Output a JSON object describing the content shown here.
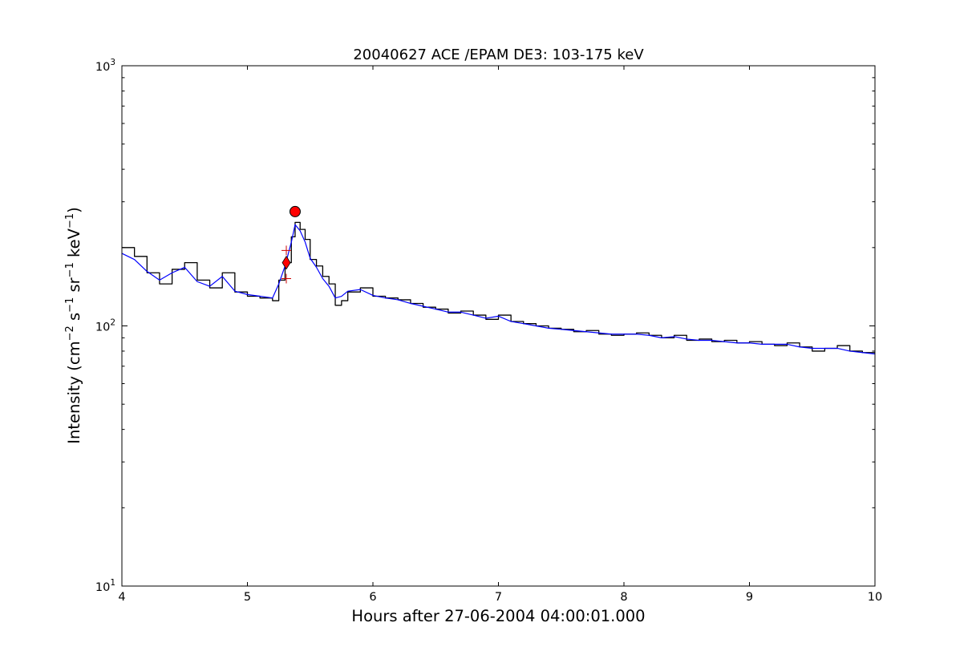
{
  "chart_data": {
    "type": "line",
    "title": "20040627 ACE /EPAM DE3: 103-175 keV",
    "xlabel": "Hours after 27-06-2004 04:00:01.000",
    "ylabel": {
      "prefix": "Intensity (cm",
      "exp1": "−2",
      "part2": " s",
      "exp2": "−1",
      "part3": " sr",
      "exp3": "−1",
      "part4": " keV",
      "exp4": "−1",
      "suffix": ")"
    },
    "xlim": [
      4,
      10
    ],
    "ylim": [
      10,
      1000
    ],
    "yscale": "log",
    "grid": false,
    "x_ticks": [
      {
        "value": 4,
        "label": "4"
      },
      {
        "value": 5,
        "label": "5"
      },
      {
        "value": 6,
        "label": "6"
      },
      {
        "value": 7,
        "label": "7"
      },
      {
        "value": 8,
        "label": "8"
      },
      {
        "value": 9,
        "label": "9"
      },
      {
        "value": 10,
        "label": "10"
      }
    ],
    "y_ticks": [
      {
        "value": 10,
        "base": "10",
        "exp": "1"
      },
      {
        "value": 100,
        "base": "10",
        "exp": "2"
      },
      {
        "value": 1000,
        "base": "10",
        "exp": "3"
      }
    ],
    "series": [
      {
        "role": "raw",
        "style": "steps",
        "color": "#000000",
        "x": [
          4.0,
          4.1,
          4.2,
          4.3,
          4.4,
          4.5,
          4.6,
          4.7,
          4.8,
          4.9,
          5.0,
          5.1,
          5.2,
          5.25,
          5.3,
          5.35,
          5.38,
          5.42,
          5.46,
          5.5,
          5.55,
          5.6,
          5.65,
          5.7,
          5.75,
          5.8,
          5.9,
          6.0,
          6.1,
          6.2,
          6.3,
          6.4,
          6.5,
          6.6,
          6.7,
          6.8,
          6.9,
          7.0,
          7.1,
          7.2,
          7.3,
          7.4,
          7.5,
          7.6,
          7.7,
          7.8,
          7.9,
          8.0,
          8.1,
          8.2,
          8.3,
          8.4,
          8.5,
          8.6,
          8.7,
          8.8,
          8.9,
          9.0,
          9.1,
          9.2,
          9.3,
          9.4,
          9.5,
          9.6,
          9.7,
          9.8,
          9.9,
          10.0
        ],
        "y": [
          200,
          185,
          160,
          145,
          165,
          175,
          150,
          140,
          160,
          135,
          130,
          128,
          125,
          150,
          175,
          220,
          250,
          235,
          215,
          180,
          170,
          155,
          145,
          120,
          125,
          135,
          140,
          130,
          128,
          126,
          122,
          118,
          116,
          112,
          114,
          110,
          106,
          110,
          104,
          102,
          100,
          98,
          97,
          95,
          96,
          93,
          92,
          93,
          94,
          92,
          90,
          92,
          88,
          89,
          87,
          88,
          86,
          87,
          85,
          84,
          86,
          83,
          80,
          82,
          84,
          80,
          79,
          78
        ]
      },
      {
        "role": "smoothed",
        "style": "line",
        "color": "#0000ff",
        "x": [
          4.0,
          4.1,
          4.2,
          4.3,
          4.4,
          4.5,
          4.6,
          4.7,
          4.8,
          4.9,
          5.0,
          5.1,
          5.2,
          5.25,
          5.3,
          5.35,
          5.38,
          5.42,
          5.46,
          5.5,
          5.55,
          5.6,
          5.65,
          5.7,
          5.75,
          5.8,
          5.9,
          6.0,
          6.1,
          6.2,
          6.3,
          6.4,
          6.5,
          6.6,
          6.7,
          6.8,
          6.9,
          7.0,
          7.1,
          7.2,
          7.3,
          7.4,
          7.5,
          7.6,
          7.7,
          7.8,
          7.9,
          8.0,
          8.1,
          8.2,
          8.3,
          8.4,
          8.5,
          8.6,
          8.7,
          8.8,
          8.9,
          9.0,
          9.1,
          9.2,
          9.3,
          9.4,
          9.5,
          9.6,
          9.7,
          9.8,
          9.9,
          10.0
        ],
        "y": [
          190,
          180,
          162,
          150,
          160,
          168,
          148,
          142,
          155,
          136,
          132,
          130,
          128,
          145,
          170,
          210,
          245,
          232,
          210,
          182,
          168,
          152,
          142,
          128,
          130,
          136,
          138,
          131,
          128,
          126,
          122,
          119,
          116,
          113,
          113,
          110,
          107,
          109,
          104,
          102,
          100,
          98,
          97,
          96,
          95,
          94,
          93,
          93,
          93,
          92,
          90,
          91,
          89,
          88,
          88,
          87,
          86,
          86,
          85,
          85,
          85,
          83,
          82,
          82,
          82,
          80,
          79,
          78
        ]
      }
    ],
    "markers": [
      {
        "kind": "circle",
        "x": 5.38,
        "y": 275,
        "color": "#ff0000"
      },
      {
        "kind": "diamond",
        "x": 5.31,
        "y": 175,
        "color": "#ff0000"
      },
      {
        "kind": "plus",
        "x": 5.31,
        "y": 195,
        "color": "#cc0000"
      },
      {
        "kind": "plus",
        "x": 5.31,
        "y": 152,
        "color": "#cc0000"
      }
    ]
  }
}
